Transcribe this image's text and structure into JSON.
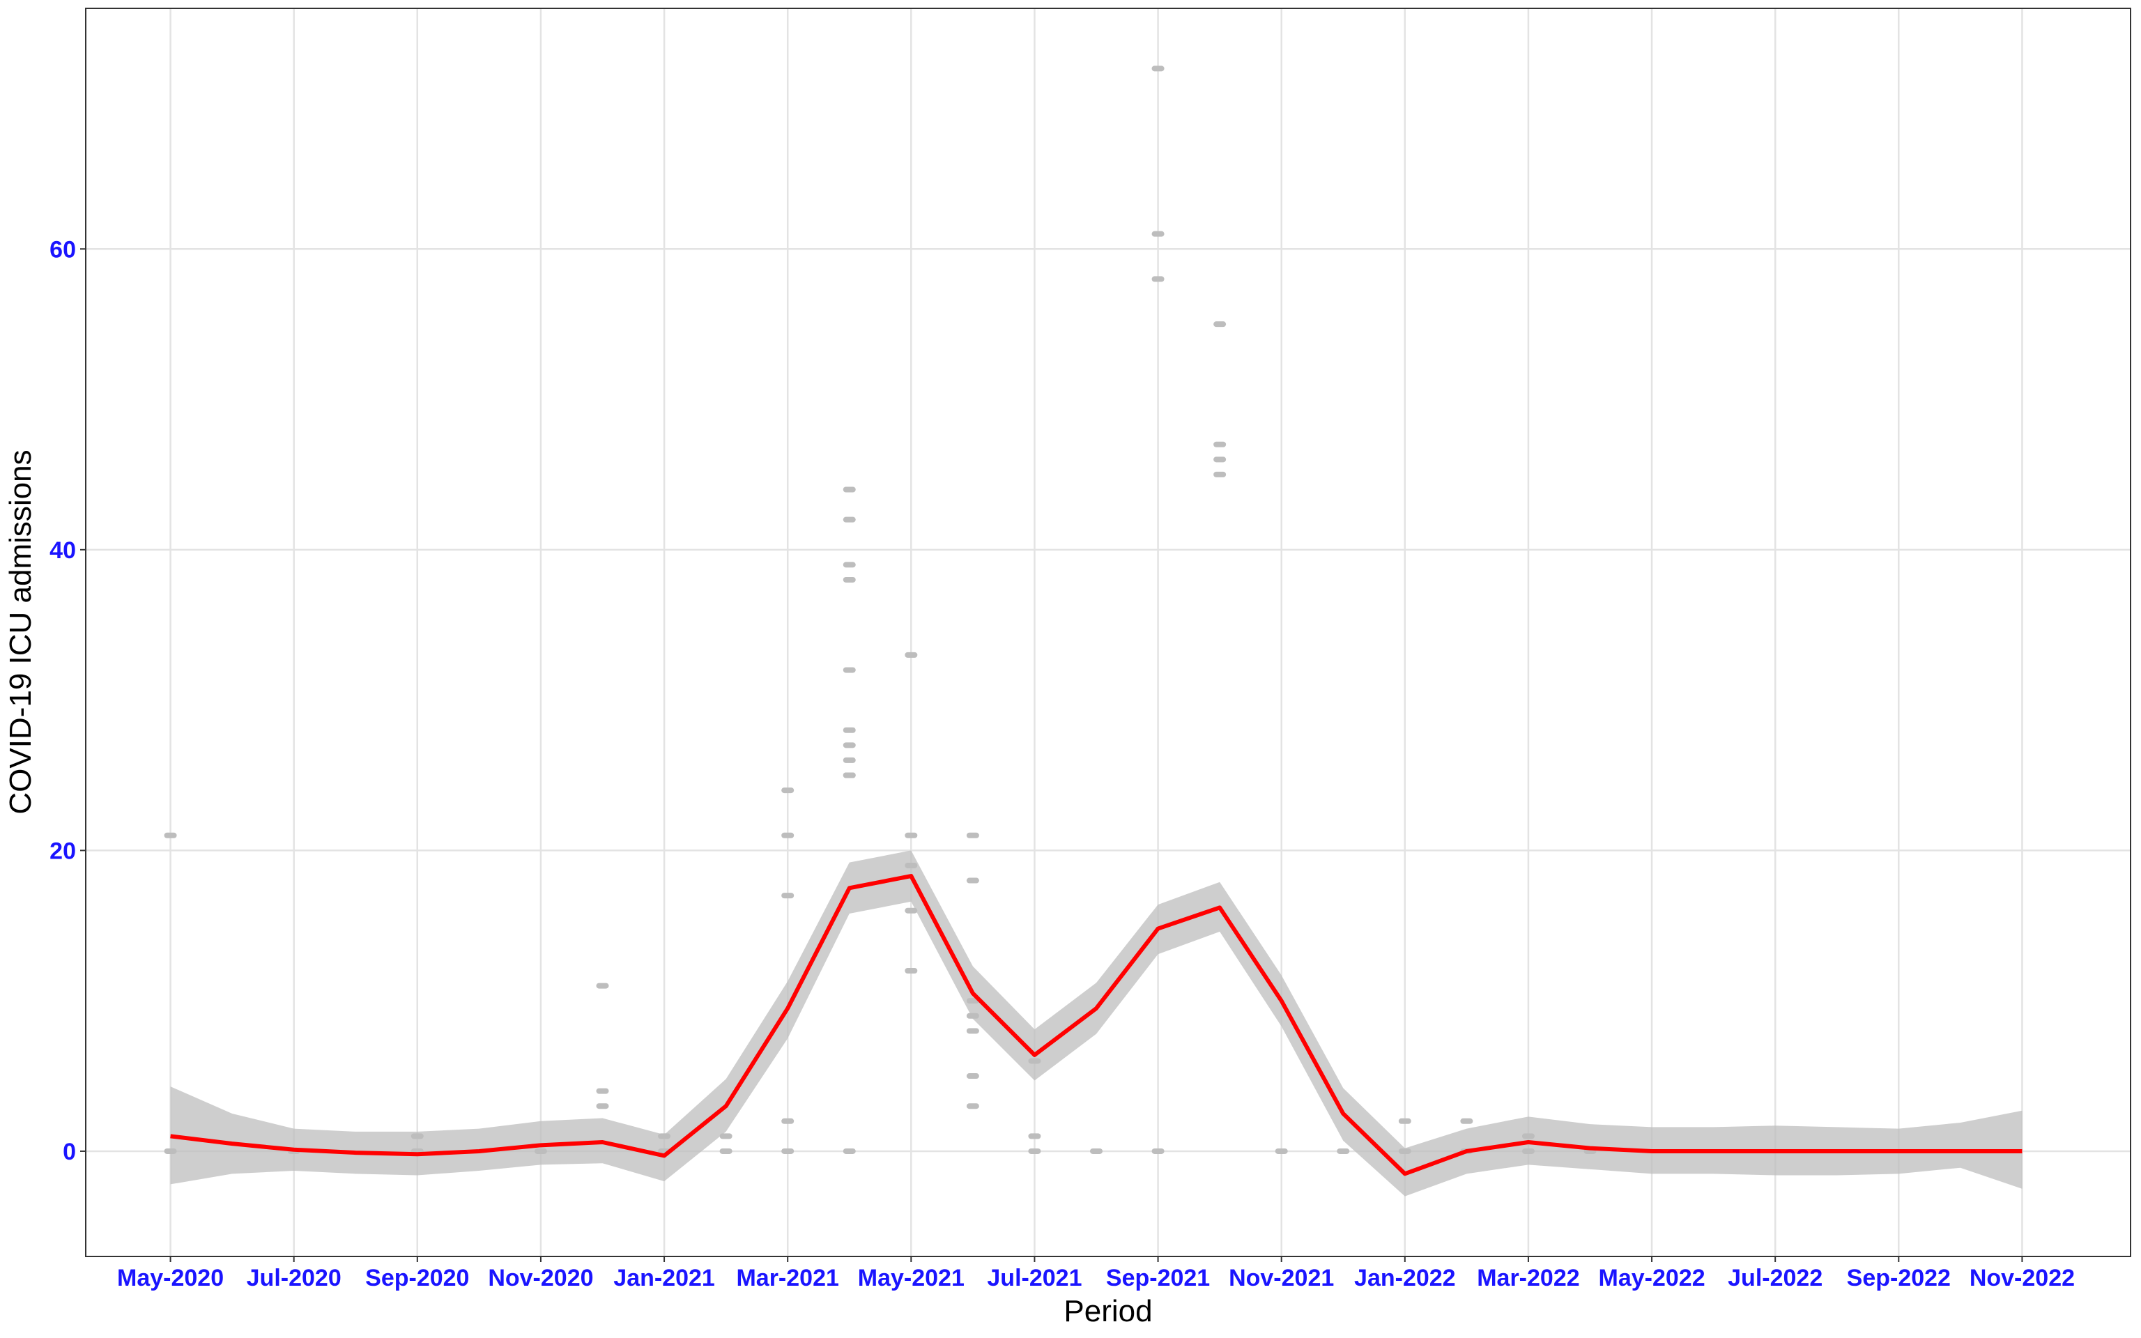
{
  "chart_data": {
    "type": "line",
    "x_label": "Period",
    "y_label": "COVID-19 ICU admissions",
    "xlim": [
      "2020-04",
      "2022-12"
    ],
    "ylim": [
      -7,
      76
    ],
    "xticks": [
      {
        "value": "2020-05",
        "label": "May-2020"
      },
      {
        "value": "2020-07",
        "label": "Jul-2020"
      },
      {
        "value": "2020-09",
        "label": "Sep-2020"
      },
      {
        "value": "2020-11",
        "label": "Nov-2020"
      },
      {
        "value": "2021-01",
        "label": "Jan-2021"
      },
      {
        "value": "2021-03",
        "label": "Mar-2021"
      },
      {
        "value": "2021-05",
        "label": "May-2021"
      },
      {
        "value": "2021-07",
        "label": "Jul-2021"
      },
      {
        "value": "2021-09",
        "label": "Sep-2021"
      },
      {
        "value": "2021-11",
        "label": "Nov-2021"
      },
      {
        "value": "2022-01",
        "label": "Jan-2022"
      },
      {
        "value": "2022-03",
        "label": "Mar-2022"
      },
      {
        "value": "2022-05",
        "label": "May-2022"
      },
      {
        "value": "2022-07",
        "label": "Jul-2022"
      },
      {
        "value": "2022-09",
        "label": "Sep-2022"
      },
      {
        "value": "2022-11",
        "label": "Nov-2022"
      }
    ],
    "yticks": [
      0,
      20,
      40,
      60
    ],
    "grid": true,
    "x": [
      "2020-05",
      "2020-06",
      "2020-07",
      "2020-08",
      "2020-09",
      "2020-10",
      "2020-11",
      "2020-12",
      "2021-01",
      "2021-02",
      "2021-03",
      "2021-04",
      "2021-05",
      "2021-06",
      "2021-07",
      "2021-08",
      "2021-09",
      "2021-10",
      "2021-11",
      "2021-12",
      "2022-01",
      "2022-02",
      "2022-03",
      "2022-04",
      "2022-05",
      "2022-06",
      "2022-07",
      "2022-08",
      "2022-09",
      "2022-10",
      "2022-11"
    ],
    "series": [
      {
        "color": "#ff0000",
        "values": [
          1.0,
          0.5,
          0.1,
          -0.1,
          -0.2,
          0,
          0.4,
          0.6,
          -0.3,
          3.0,
          9.5,
          17.5,
          18.3,
          10.5,
          6.4,
          9.5,
          14.8,
          16.2,
          10.0,
          2.5,
          -1.5,
          0,
          0.6,
          0.2,
          0,
          0,
          0,
          0,
          0,
          0,
          0
        ]
      }
    ],
    "band": {
      "color": "#bebebe",
      "lower": [
        -2.2,
        -1.5,
        -1.3,
        -1.5,
        -1.6,
        -1.3,
        -0.9,
        -0.8,
        -2.0,
        1.3,
        7.5,
        15.8,
        16.6,
        8.8,
        4.7,
        7.8,
        13.1,
        14.6,
        8.3,
        0.7,
        -3.0,
        -1.5,
        -0.9,
        -1.2,
        -1.5,
        -1.5,
        -1.6,
        -1.6,
        -1.5,
        -1.1,
        -2.5
      ],
      "upper": [
        4.3,
        2.5,
        1.5,
        1.3,
        1.3,
        1.5,
        2.0,
        2.2,
        1.1,
        4.8,
        11.3,
        19.2,
        20.0,
        12.3,
        8.1,
        11.2,
        16.4,
        17.9,
        11.7,
        4.2,
        0.2,
        1.5,
        2.3,
        1.8,
        1.6,
        1.6,
        1.7,
        1.6,
        1.5,
        1.9,
        2.7
      ]
    },
    "points": {
      "color": "#bdbdbd",
      "x": [
        "2020-05",
        "2020-05",
        "2020-07",
        "2020-09",
        "2020-09",
        "2020-11",
        "2020-12",
        "2020-12",
        "2020-12",
        "2021-01",
        "2021-01",
        "2021-02",
        "2021-02",
        "2021-03",
        "2021-03",
        "2021-03",
        "2021-03",
        "2021-03",
        "2021-04",
        "2021-04",
        "2021-04",
        "2021-04",
        "2021-04",
        "2021-04",
        "2021-04",
        "2021-04",
        "2021-04",
        "2021-04",
        "2021-04",
        "2021-05",
        "2021-05",
        "2021-05",
        "2021-05",
        "2021-05",
        "2021-06",
        "2021-06",
        "2021-06",
        "2021-06",
        "2021-06",
        "2021-06",
        "2021-06",
        "2021-07",
        "2021-07",
        "2021-07",
        "2021-08",
        "2021-09",
        "2021-09",
        "2021-09",
        "2021-09",
        "2021-10",
        "2021-10",
        "2021-10",
        "2021-10",
        "2021-11",
        "2021-12",
        "2022-01",
        "2022-01",
        "2022-02",
        "2022-02",
        "2022-03",
        "2022-03",
        "2022-04"
      ],
      "values": [
        21,
        0,
        0,
        1,
        0,
        0,
        4,
        11,
        3,
        1,
        0,
        1,
        0,
        2,
        0,
        17,
        21,
        24,
        28,
        25,
        42,
        44,
        39,
        38,
        32,
        26,
        25,
        27,
        0,
        33,
        21,
        16,
        19,
        12,
        21,
        18,
        10,
        5,
        9,
        8,
        3,
        6,
        1,
        0,
        0,
        61,
        58,
        72,
        0,
        46,
        55,
        47,
        45,
        0,
        0,
        0,
        2,
        2,
        0,
        1,
        0,
        0
      ]
    }
  }
}
